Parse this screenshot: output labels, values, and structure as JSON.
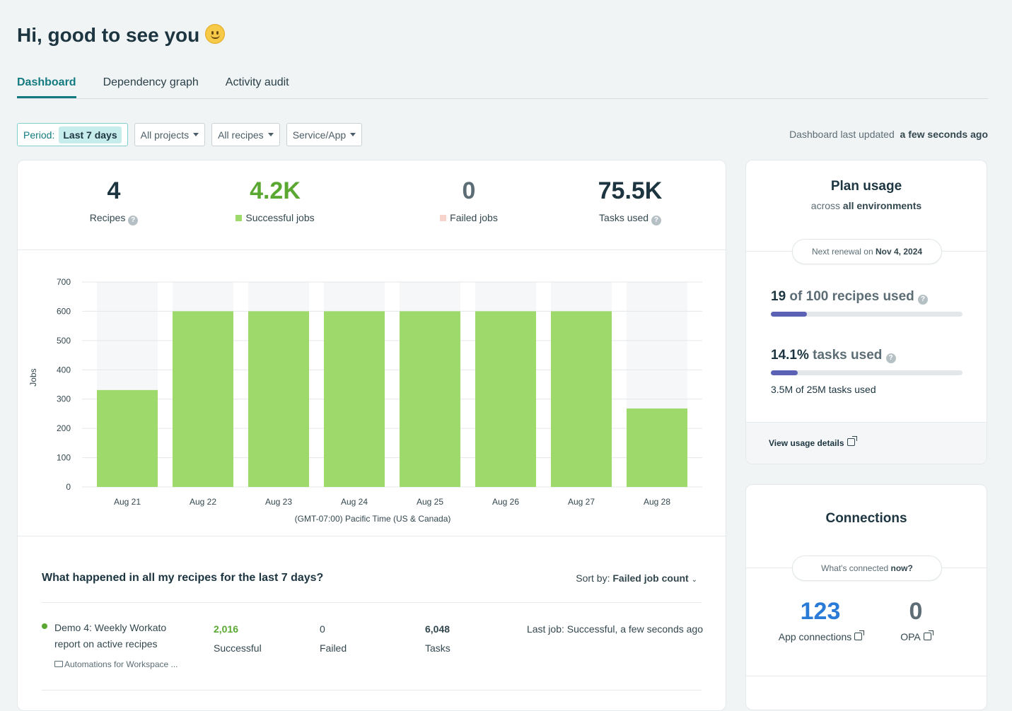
{
  "greeting": "Hi, good to see you",
  "tabs": [
    {
      "label": "Dashboard",
      "active": true
    },
    {
      "label": "Dependency graph"
    },
    {
      "label": "Activity audit"
    }
  ],
  "filters": {
    "period_label": "Period:",
    "period_value": "Last 7 days",
    "projects": "All projects",
    "recipes": "All recipes",
    "service": "Service/App"
  },
  "updated": {
    "label": "Dashboard last updated",
    "value": "a few seconds ago"
  },
  "stats": [
    {
      "value": "4",
      "label": "Recipes"
    },
    {
      "value": "4.2K",
      "label": "Successful jobs",
      "color": "#5aa832"
    },
    {
      "value": "0",
      "label": "Failed jobs"
    },
    {
      "value": "75.5K",
      "label": "Tasks used"
    }
  ],
  "chart_data": {
    "type": "bar",
    "categories": [
      "Aug 21",
      "Aug 22",
      "Aug 23",
      "Aug 24",
      "Aug 25",
      "Aug 26",
      "Aug 27",
      "Aug 28"
    ],
    "values": [
      331,
      600,
      600,
      600,
      600,
      600,
      600,
      268
    ],
    "ylabel": "Jobs",
    "xlabel": "(GMT-07:00) Pacific Time (US & Canada)",
    "ylim": [
      0,
      700
    ],
    "yticks": [
      0,
      100,
      200,
      300,
      400,
      500,
      600,
      700
    ],
    "grid": true,
    "color": "#9dd96b"
  },
  "recipes_section": {
    "title": "What happened in all my recipes for the last 7 days?",
    "sort_label": "Sort by:",
    "sort_value": "Failed job count",
    "rows": [
      {
        "name_line1": "Demo 4: Weekly Workato",
        "name_line2": "report on active recipes",
        "folder": "Automations for Workspace ...",
        "successful": "2,016",
        "successful_label": "Successful",
        "failed": "0",
        "failed_label": "Failed",
        "tasks": "6,048",
        "tasks_label": "Tasks",
        "last_job": "Last job: Successful, a few seconds ago"
      }
    ]
  },
  "plan": {
    "title": "Plan usage",
    "subtitle_pre": "across",
    "subtitle_b": "all environments",
    "renewal_pre": "Next renewal on",
    "renewal_date": "Nov 4, 2024",
    "recipes_num": "19",
    "recipes_text": "of 100 recipes used",
    "recipes_pct": 19,
    "tasks_num": "14.1%",
    "tasks_text": "tasks used",
    "tasks_pct": 14.1,
    "tasks_detail": "3.5M of 25M tasks used",
    "link": "View usage details"
  },
  "connections": {
    "title": "Connections",
    "pill_pre": "What's connected",
    "pill_b": "now?",
    "app_value": "123",
    "app_label": "App connections",
    "opa_value": "0",
    "opa_label": "OPA"
  }
}
